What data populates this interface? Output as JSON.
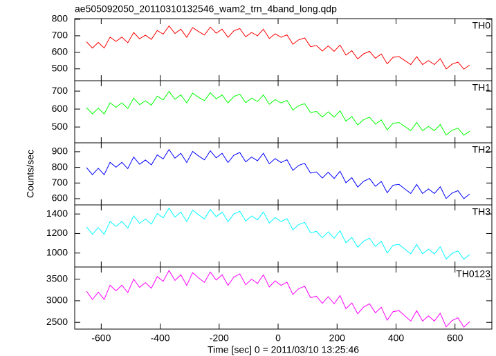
{
  "chart_data": [
    {
      "type": "line",
      "title": "ae505092050_20110310132546_wam2_trn_4band_long.qdp",
      "label": "TH0",
      "color": "#ff0000",
      "x": [
        -650,
        -630,
        -610,
        -590,
        -570,
        -550,
        -530,
        -510,
        -490,
        -470,
        -450,
        -430,
        -410,
        -390,
        -370,
        -350,
        -330,
        -310,
        -290,
        -270,
        -250,
        -230,
        -210,
        -190,
        -170,
        -150,
        -130,
        -110,
        -90,
        -70,
        -50,
        -30,
        -10,
        10,
        30,
        50,
        70,
        90,
        110,
        130,
        150,
        170,
        190,
        210,
        230,
        250,
        270,
        290,
        310,
        330,
        350,
        370,
        390,
        410,
        430,
        450,
        470,
        490,
        510,
        530,
        550,
        570,
        590,
        610,
        630,
        650
      ],
      "values": [
        664,
        626,
        660,
        626,
        692,
        666,
        692,
        658,
        720,
        682,
        704,
        678,
        732,
        710,
        760,
        714,
        740,
        691,
        750,
        726,
        705,
        753,
        716,
        740,
        691,
        730,
        744,
        694,
        720,
        700,
        740,
        684,
        712,
        691,
        706,
        649,
        676,
        687,
        634,
        641,
        608,
        639,
        606,
        644,
        583,
        610,
        560,
        591,
        606,
        564,
        590,
        530,
        570,
        574,
        550,
        526,
        574,
        526,
        550,
        526,
        562,
        499,
        528,
        541,
        498,
        523
      ],
      "xlim": [
        -690,
        725
      ],
      "xticks": [
        -600,
        -400,
        -200,
        0,
        200,
        400,
        600
      ],
      "ylim": [
        428,
        804
      ],
      "yticks": [
        500,
        600,
        700,
        800
      ]
    },
    {
      "type": "line",
      "label": "TH1",
      "color": "#00ff00",
      "x": [
        -650,
        -630,
        -610,
        -590,
        -570,
        -550,
        -530,
        -510,
        -490,
        -470,
        -450,
        -430,
        -410,
        -390,
        -370,
        -350,
        -330,
        -310,
        -290,
        -270,
        -250,
        -230,
        -210,
        -190,
        -170,
        -150,
        -130,
        -110,
        -90,
        -70,
        -50,
        -30,
        -10,
        10,
        30,
        50,
        70,
        90,
        110,
        130,
        150,
        170,
        190,
        210,
        230,
        250,
        270,
        290,
        310,
        330,
        350,
        370,
        390,
        410,
        430,
        450,
        470,
        490,
        510,
        530,
        550,
        570,
        590,
        610,
        630,
        650
      ],
      "values": [
        608,
        573,
        605,
        573,
        635,
        610,
        635,
        603,
        661,
        625,
        646,
        622,
        672,
        651,
        698,
        655,
        679,
        634,
        689,
        666,
        647,
        691,
        657,
        679,
        634,
        670,
        683,
        636,
        661,
        642,
        679,
        627,
        653,
        634,
        648,
        595,
        620,
        630,
        581,
        587,
        556,
        585,
        555,
        590,
        533,
        558,
        512,
        541,
        555,
        516,
        540,
        484,
        521,
        525,
        503,
        480,
        525,
        480,
        503,
        480,
        514,
        455,
        482,
        494,
        454,
        477
      ],
      "xlim": [
        -690,
        725
      ],
      "xticks": [
        -600,
        -400,
        -200,
        0,
        200,
        400,
        600
      ],
      "ylim": [
        412,
        758
      ],
      "yticks": [
        500,
        600,
        700
      ]
    },
    {
      "type": "line",
      "label": "TH2",
      "ylabel": "Counts/sec",
      "color": "#0000ff",
      "x": [
        -650,
        -630,
        -610,
        -590,
        -570,
        -550,
        -530,
        -510,
        -490,
        -470,
        -450,
        -430,
        -410,
        -390,
        -370,
        -350,
        -330,
        -310,
        -290,
        -270,
        -250,
        -230,
        -210,
        -190,
        -170,
        -150,
        -130,
        -110,
        -90,
        -70,
        -50,
        -30,
        -10,
        10,
        30,
        50,
        70,
        90,
        110,
        130,
        150,
        170,
        190,
        210,
        230,
        250,
        270,
        290,
        310,
        330,
        350,
        370,
        390,
        410,
        430,
        450,
        470,
        490,
        510,
        530,
        550,
        570,
        590,
        610,
        630,
        650
      ],
      "values": [
        799,
        753,
        794,
        753,
        832,
        801,
        832,
        792,
        866,
        820,
        847,
        816,
        880,
        854,
        914,
        859,
        890,
        831,
        902,
        873,
        848,
        906,
        861,
        890,
        831,
        878,
        895,
        835,
        866,
        842,
        890,
        823,
        856,
        831,
        849,
        781,
        813,
        826,
        763,
        771,
        732,
        769,
        729,
        775,
        702,
        734,
        674,
        711,
        729,
        679,
        710,
        638,
        686,
        691,
        662,
        633,
        691,
        633,
        662,
        633,
        676,
        601,
        636,
        651,
        600,
        630
      ],
      "xlim": [
        -690,
        725
      ],
      "xticks": [
        -600,
        -400,
        -200,
        0,
        200,
        400,
        600
      ],
      "ylim": [
        560,
        957
      ],
      "yticks": [
        600,
        700,
        800,
        900
      ]
    },
    {
      "type": "line",
      "label": "TH3",
      "color": "#00ffff",
      "x": [
        -650,
        -630,
        -610,
        -590,
        -570,
        -550,
        -530,
        -510,
        -490,
        -470,
        -450,
        -430,
        -410,
        -390,
        -370,
        -350,
        -330,
        -310,
        -290,
        -270,
        -250,
        -230,
        -210,
        -190,
        -170,
        -150,
        -130,
        -110,
        -90,
        -70,
        -50,
        -30,
        -10,
        10,
        30,
        50,
        70,
        90,
        110,
        130,
        150,
        170,
        190,
        210,
        230,
        250,
        270,
        290,
        310,
        330,
        350,
        370,
        390,
        410,
        430,
        450,
        470,
        490,
        510,
        530,
        550,
        570,
        590,
        610,
        630,
        650
      ],
      "values": [
        1268,
        1192,
        1260,
        1192,
        1324,
        1272,
        1324,
        1256,
        1380,
        1304,
        1348,
        1296,
        1404,
        1360,
        1460,
        1368,
        1420,
        1322,
        1440,
        1392,
        1350,
        1446,
        1372,
        1420,
        1322,
        1400,
        1428,
        1328,
        1380,
        1340,
        1420,
        1308,
        1364,
        1322,
        1352,
        1238,
        1292,
        1314,
        1208,
        1222,
        1156,
        1218,
        1152,
        1228,
        1106,
        1160,
        1060,
        1122,
        1152,
        1068,
        1120,
        1000,
        1080,
        1088,
        1040,
        992,
        1088,
        992,
        1040,
        992,
        1064,
        938,
        996,
        1022,
        936,
        986
      ],
      "xlim": [
        -690,
        725
      ],
      "xticks": [
        -600,
        -400,
        -200,
        0,
        200,
        400,
        600
      ],
      "ylim": [
        857,
        1493
      ],
      "yticks": [
        1000,
        1200,
        1400
      ]
    },
    {
      "type": "line",
      "label": "TH0123",
      "xlabel": "Time [sec] 0 = 2011/03/10 13:25:46",
      "color": "#ff00ff",
      "x": [
        -650,
        -630,
        -610,
        -590,
        -570,
        -550,
        -530,
        -510,
        -490,
        -470,
        -450,
        -430,
        -410,
        -390,
        -370,
        -350,
        -330,
        -310,
        -290,
        -270,
        -250,
        -230,
        -210,
        -190,
        -170,
        -150,
        -130,
        -110,
        -90,
        -70,
        -50,
        -30,
        -10,
        10,
        30,
        50,
        70,
        90,
        110,
        130,
        150,
        170,
        190,
        210,
        230,
        250,
        270,
        290,
        310,
        330,
        350,
        370,
        390,
        410,
        430,
        450,
        470,
        490,
        510,
        530,
        550,
        570,
        590,
        610,
        630,
        650
      ],
      "values": [
        3220,
        3030,
        3200,
        3030,
        3360,
        3230,
        3360,
        3190,
        3500,
        3310,
        3420,
        3290,
        3560,
        3450,
        3700,
        3470,
        3600,
        3355,
        3650,
        3530,
        3425,
        3665,
        3480,
        3600,
        3355,
        3550,
        3620,
        3370,
        3500,
        3400,
        3600,
        3320,
        3460,
        3355,
        3430,
        3145,
        3280,
        3335,
        3070,
        3105,
        2940,
        3095,
        2930,
        3120,
        2815,
        2950,
        2700,
        2855,
        2930,
        2720,
        2850,
        2550,
        2750,
        2770,
        2650,
        2530,
        2770,
        2530,
        2650,
        2530,
        2710,
        2395,
        2540,
        2605,
        2390,
        2515
      ],
      "xlim": [
        -690,
        725
      ],
      "xticks": [
        -600,
        -400,
        -200,
        0,
        200,
        400,
        600
      ],
      "ylim": [
        2344,
        3781
      ],
      "yticks": [
        2500,
        3000,
        3500
      ]
    }
  ]
}
